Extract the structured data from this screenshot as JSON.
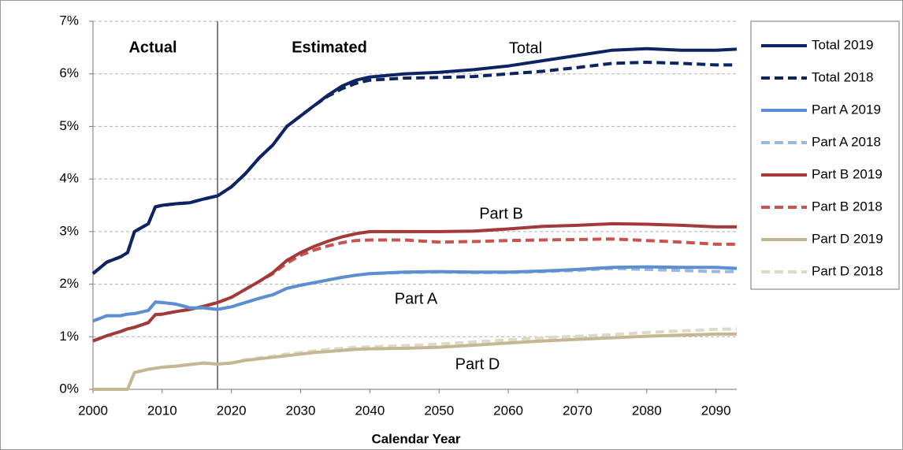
{
  "chart_data": {
    "type": "line",
    "x_label": "Calendar Year",
    "annotations": [
      "Actual",
      "Estimated",
      "Total",
      "Part B",
      "Part A",
      "Part D"
    ],
    "reference_line_x": 2018,
    "x": [
      2000,
      2002,
      2004,
      2005,
      2006,
      2008,
      2009,
      2010,
      2012,
      2014,
      2016,
      2018,
      2020,
      2022,
      2024,
      2026,
      2028,
      2030,
      2032,
      2034,
      2036,
      2038,
      2040,
      2045,
      2050,
      2055,
      2060,
      2065,
      2070,
      2075,
      2080,
      2085,
      2090,
      2093
    ],
    "xlim": [
      2000,
      2093
    ],
    "xticks": [
      2000,
      2010,
      2020,
      2030,
      2040,
      2050,
      2060,
      2070,
      2080,
      2090
    ],
    "ylim": [
      0,
      7
    ],
    "yticks": [
      {
        "value": 0,
        "label": "0%"
      },
      {
        "value": 1,
        "label": "1%"
      },
      {
        "value": 2,
        "label": "2%"
      },
      {
        "value": 3,
        "label": "3%"
      },
      {
        "value": 4,
        "label": "4%"
      },
      {
        "value": 5,
        "label": "5%"
      },
      {
        "value": 6,
        "label": "6%"
      },
      {
        "value": 7,
        "label": "7%"
      }
    ],
    "grid": true,
    "legend": "right",
    "series": [
      {
        "name": "Total 2019",
        "color": "#0d2463",
        "dashed": false,
        "values": [
          2.2,
          2.42,
          2.52,
          2.6,
          3.0,
          3.15,
          3.47,
          3.5,
          3.53,
          3.55,
          3.62,
          3.68,
          3.85,
          4.1,
          4.4,
          4.65,
          5.0,
          5.2,
          5.4,
          5.6,
          5.77,
          5.88,
          5.94,
          6.0,
          6.03,
          6.08,
          6.15,
          6.25,
          6.35,
          6.45,
          6.48,
          6.45,
          6.45,
          6.47
        ]
      },
      {
        "name": "Total 2018",
        "color": "#0d2463",
        "dashed": true,
        "values": [
          2.2,
          2.42,
          2.52,
          2.6,
          3.0,
          3.15,
          3.47,
          3.5,
          3.53,
          3.55,
          3.62,
          3.68,
          3.85,
          4.1,
          4.4,
          4.65,
          5.0,
          5.2,
          5.4,
          5.58,
          5.72,
          5.82,
          5.88,
          5.92,
          5.93,
          5.95,
          6.0,
          6.05,
          6.12,
          6.2,
          6.22,
          6.2,
          6.17,
          6.17
        ]
      },
      {
        "name": "Part A 2019",
        "color": "#5b8fd1",
        "dashed": false,
        "values": [
          1.3,
          1.4,
          1.4,
          1.43,
          1.44,
          1.5,
          1.66,
          1.65,
          1.62,
          1.55,
          1.55,
          1.52,
          1.57,
          1.65,
          1.73,
          1.8,
          1.92,
          1.98,
          2.03,
          2.08,
          2.13,
          2.17,
          2.2,
          2.23,
          2.24,
          2.23,
          2.23,
          2.25,
          2.28,
          2.32,
          2.33,
          2.32,
          2.32,
          2.3
        ]
      },
      {
        "name": "Part A 2018",
        "color": "#9bb8e2",
        "dashed": true,
        "values": [
          1.3,
          1.4,
          1.4,
          1.43,
          1.44,
          1.5,
          1.66,
          1.65,
          1.62,
          1.55,
          1.55,
          1.52,
          1.57,
          1.65,
          1.73,
          1.8,
          1.92,
          1.98,
          2.03,
          2.08,
          2.13,
          2.17,
          2.2,
          2.22,
          2.23,
          2.22,
          2.22,
          2.24,
          2.26,
          2.3,
          2.28,
          2.26,
          2.24,
          2.24
        ]
      },
      {
        "name": "Part B 2019",
        "color": "#a33a3a",
        "dashed": false,
        "values": [
          0.92,
          1.02,
          1.1,
          1.15,
          1.18,
          1.27,
          1.42,
          1.43,
          1.48,
          1.52,
          1.58,
          1.65,
          1.75,
          1.9,
          2.05,
          2.22,
          2.45,
          2.6,
          2.72,
          2.82,
          2.9,
          2.96,
          3.0,
          3.0,
          3.0,
          3.01,
          3.05,
          3.1,
          3.12,
          3.15,
          3.14,
          3.12,
          3.09,
          3.09
        ]
      },
      {
        "name": "Part B 2018",
        "color": "#cc5250",
        "dashed": true,
        "values": [
          0.92,
          1.02,
          1.1,
          1.15,
          1.18,
          1.27,
          1.42,
          1.43,
          1.48,
          1.52,
          1.58,
          1.65,
          1.75,
          1.9,
          2.05,
          2.2,
          2.4,
          2.55,
          2.65,
          2.73,
          2.79,
          2.83,
          2.84,
          2.84,
          2.8,
          2.81,
          2.83,
          2.84,
          2.85,
          2.86,
          2.83,
          2.8,
          2.76,
          2.76
        ]
      },
      {
        "name": "Part D 2019",
        "color": "#c4b894",
        "dashed": false,
        "values": [
          0,
          0,
          0,
          0,
          0.32,
          0.38,
          0.4,
          0.42,
          0.44,
          0.47,
          0.5,
          0.48,
          0.5,
          0.55,
          0.58,
          0.61,
          0.64,
          0.67,
          0.7,
          0.72,
          0.74,
          0.76,
          0.77,
          0.78,
          0.8,
          0.84,
          0.88,
          0.92,
          0.95,
          0.98,
          1.01,
          1.03,
          1.05,
          1.05
        ]
      },
      {
        "name": "Part D 2018",
        "color": "#e0d9c4",
        "dashed": true,
        "values": [
          0,
          0,
          0,
          0,
          0.32,
          0.38,
          0.4,
          0.42,
          0.44,
          0.47,
          0.5,
          0.48,
          0.5,
          0.56,
          0.6,
          0.63,
          0.67,
          0.7,
          0.73,
          0.76,
          0.78,
          0.8,
          0.81,
          0.83,
          0.86,
          0.9,
          0.94,
          0.98,
          1.01,
          1.04,
          1.08,
          1.11,
          1.14,
          1.15
        ]
      }
    ]
  }
}
